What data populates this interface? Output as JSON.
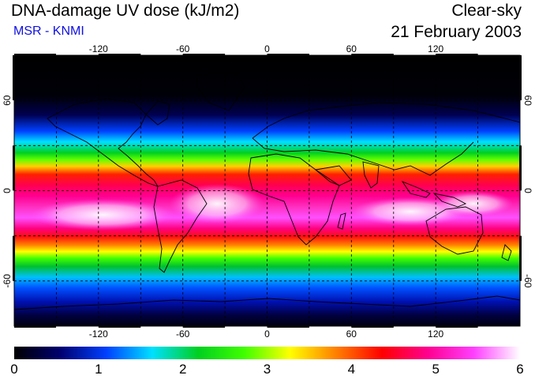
{
  "header": {
    "title": "DNA-damage UV dose (kJ/m2)",
    "subtitle": "MSR - KNMI",
    "condition": "Clear-sky",
    "date": "21 February 2003"
  },
  "map": {
    "lon_ticks": [
      "-120",
      "-60",
      "0",
      "60",
      "120"
    ],
    "lat_ticks": [
      "60",
      "0",
      "-60"
    ],
    "lon_range": [
      -180,
      180
    ],
    "lat_range": [
      -90,
      90
    ],
    "gridlines": "dashed every 30 degrees",
    "coastlines": true
  },
  "colorbar": {
    "labels": [
      "0",
      "1",
      "2",
      "3",
      "4",
      "5",
      "6"
    ],
    "min": 0,
    "max": 6,
    "colors": [
      "#000000",
      "#000070",
      "#0040ff",
      "#00e0ff",
      "#00d020",
      "#40ff00",
      "#ffff00",
      "#ff8000",
      "#ff0000",
      "#ff0090",
      "#ff40ff",
      "#ffffff"
    ]
  }
}
